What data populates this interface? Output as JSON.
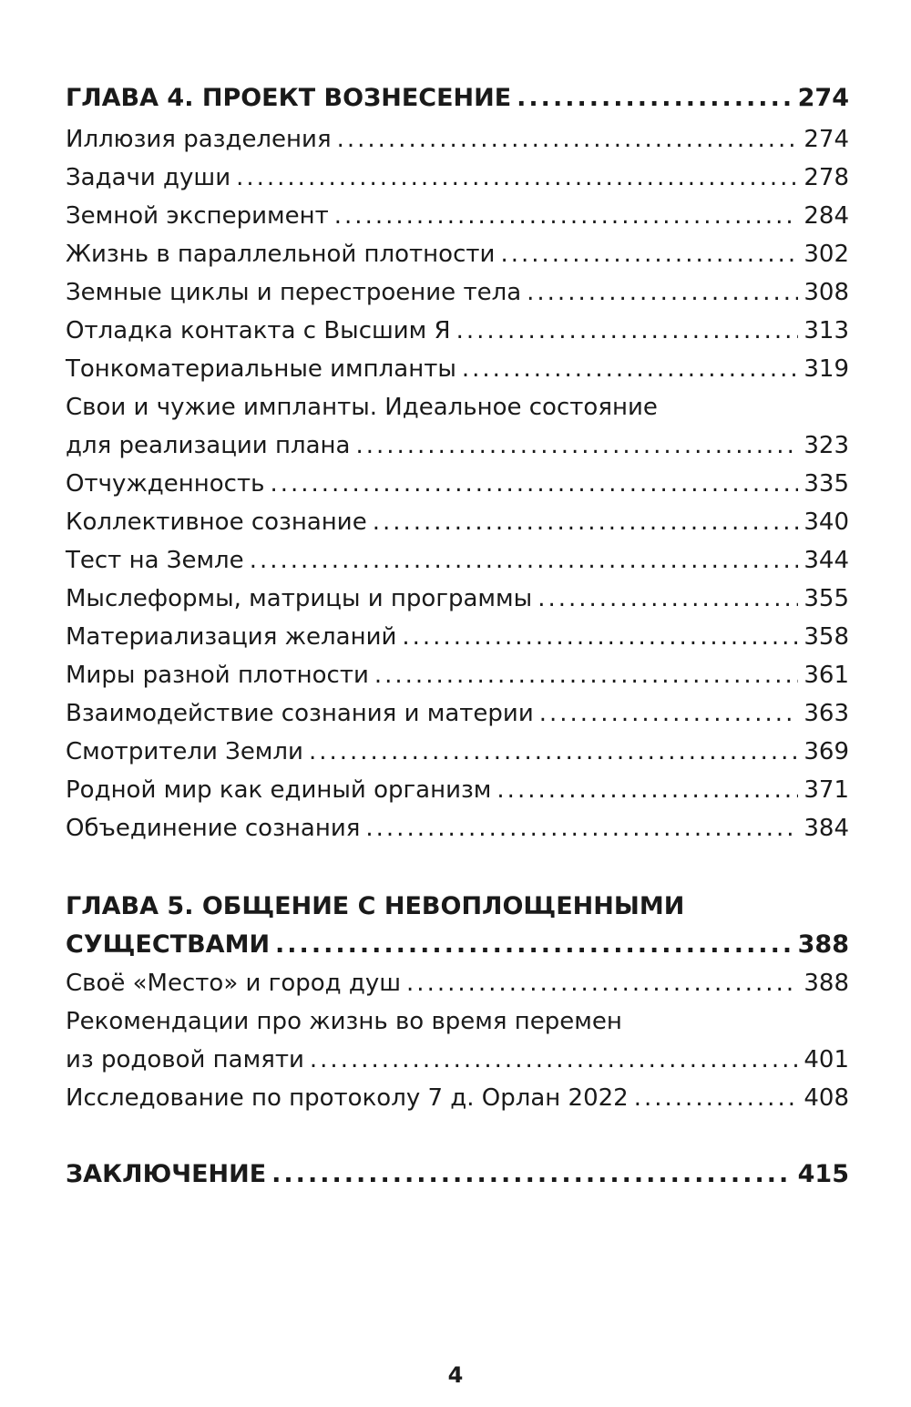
{
  "chapter4": {
    "title": "ГЛАВА 4. ПРОЕКТ ВОЗНЕСЕНИЕ",
    "page": "274",
    "items": [
      {
        "title": "Иллюзия разделения",
        "page": "274"
      },
      {
        "title": "Задачи души",
        "page": "278"
      },
      {
        "title": "Земной эксперимент",
        "page": "284"
      },
      {
        "title": "Жизнь в параллельной плотности",
        "page": "302"
      },
      {
        "title": "Земные циклы и перестроение тела",
        "page": "308"
      },
      {
        "title": "Отладка контакта с Высшим Я",
        "page": "313"
      },
      {
        "title": "Тонкоматериальные импланты",
        "page": "319"
      },
      {
        "title_line1": "Свои и чужие импланты. Идеальное состояние",
        "title": "для реализации плана",
        "page": "323"
      },
      {
        "title": "Отчужденность",
        "page": "335"
      },
      {
        "title": "Коллективное сознание",
        "page": "340"
      },
      {
        "title": "Тест на Земле",
        "page": "344"
      },
      {
        "title": "Мыслеформы, матрицы и программы",
        "page": "355"
      },
      {
        "title": "Материализация желаний",
        "page": "358"
      },
      {
        "title": "Миры разной плотности",
        "page": "361"
      },
      {
        "title": "Взаимодействие сознания и материи",
        "page": "363"
      },
      {
        "title": "Смотрители Земли",
        "page": "369"
      },
      {
        "title": "Родной мир как единый организм",
        "page": "371"
      },
      {
        "title": "Объединение сознания",
        "page": "384"
      }
    ]
  },
  "chapter5": {
    "title_line1": "ГЛАВА 5. ОБЩЕНИЕ С НЕВОПЛОЩЕННЫМИ",
    "title": "СУЩЕСТВАМИ",
    "page": "388",
    "items": [
      {
        "title": "Своё «Место» и город душ",
        "page": "388"
      },
      {
        "title_line1": "Рекомендации про жизнь во время перемен",
        "title": "из родовой памяти",
        "page": "401"
      },
      {
        "title": "Исследование по протоколу 7 д. Орлан 2022",
        "page": "408"
      }
    ]
  },
  "conclusion": {
    "title": "ЗАКЛЮЧЕНИЕ",
    "page": "415"
  },
  "page_number": "4"
}
